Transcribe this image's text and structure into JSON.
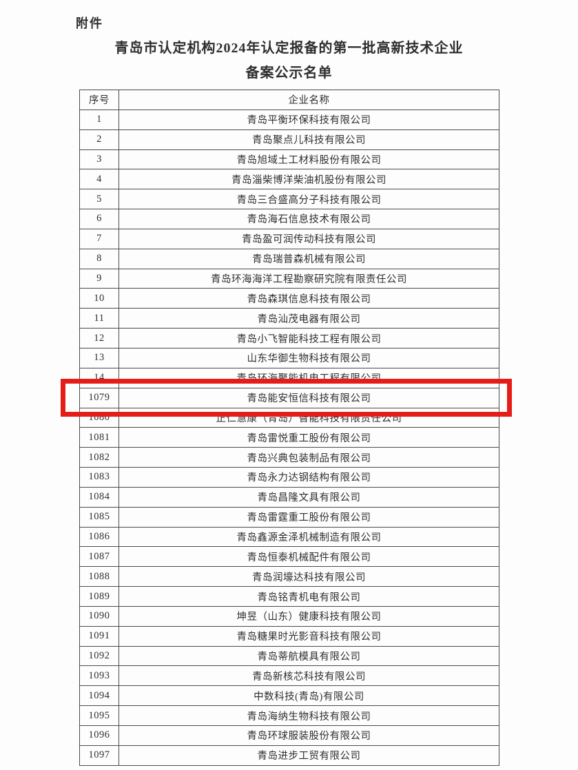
{
  "page": {
    "attachment_label": "附件",
    "title_line1": "青岛市认定机构2024年认定报备的第一批高新技术企业",
    "title_line2": "备案公示名单"
  },
  "table": {
    "headers": {
      "no": "序号",
      "name": "企业名称"
    },
    "rows": [
      {
        "no": "1",
        "name": "青岛平衡环保科技有限公司"
      },
      {
        "no": "2",
        "name": "青岛聚点儿科技有限公司"
      },
      {
        "no": "3",
        "name": "青岛旭域土工材料股份有限公司"
      },
      {
        "no": "4",
        "name": "青岛淄柴博洋柴油机股份有限公司"
      },
      {
        "no": "5",
        "name": "青岛三合盛高分子科技有限公司"
      },
      {
        "no": "6",
        "name": "青岛海石信息技术有限公司"
      },
      {
        "no": "7",
        "name": "青岛盈可润传动科技有限公司"
      },
      {
        "no": "8",
        "name": "青岛瑞普森机械有限公司"
      },
      {
        "no": "9",
        "name": "青岛环海海洋工程勘察研究院有限责任公司"
      },
      {
        "no": "10",
        "name": "青岛森琪信息科技有限公司"
      },
      {
        "no": "11",
        "name": "青岛汕茂电器有限公司"
      },
      {
        "no": "12",
        "name": "青岛小飞智能科技工程有限公司"
      },
      {
        "no": "13",
        "name": "山东华御生物科技有限公司"
      },
      {
        "no": "14",
        "name": "青岛环海聚能机电工程有限公司"
      },
      {
        "no": "1079",
        "name": "青岛能安恒信科技有限公司"
      },
      {
        "no": "1080",
        "name": "正仁慧康（青岛）智能科技有限责任公司"
      },
      {
        "no": "1081",
        "name": "青岛雷悦重工股份有限公司"
      },
      {
        "no": "1082",
        "name": "青岛兴典包装制品有限公司"
      },
      {
        "no": "1083",
        "name": "青岛永力达钢结构有限公司"
      },
      {
        "no": "1084",
        "name": "青岛昌隆文具有限公司"
      },
      {
        "no": "1085",
        "name": "青岛雷霆重工股份有限公司"
      },
      {
        "no": "1086",
        "name": "青岛鑫源金泽机械制造有限公司"
      },
      {
        "no": "1087",
        "name": "青岛恒泰机械配件有限公司"
      },
      {
        "no": "1088",
        "name": "青岛润壕达科技有限公司"
      },
      {
        "no": "1089",
        "name": "青岛铭青机电有限公司"
      },
      {
        "no": "1090",
        "name": "坤昱（山东）健康科技有限公司"
      },
      {
        "no": "1091",
        "name": "青岛糖果时光影音科技有限公司"
      },
      {
        "no": "1092",
        "name": "青岛蒂航模具有限公司"
      },
      {
        "no": "1093",
        "name": "青岛新核芯科技有限公司"
      },
      {
        "no": "1094",
        "name": "中数科技(青岛)有限公司"
      },
      {
        "no": "1095",
        "name": "青岛海纳生物科技有限公司"
      },
      {
        "no": "1096",
        "name": "青岛环球服装股份有限公司"
      },
      {
        "no": "1097",
        "name": "青岛进步工贸有限公司"
      }
    ]
  },
  "highlight": {
    "row_no": "1079",
    "color": "#e51c17"
  }
}
